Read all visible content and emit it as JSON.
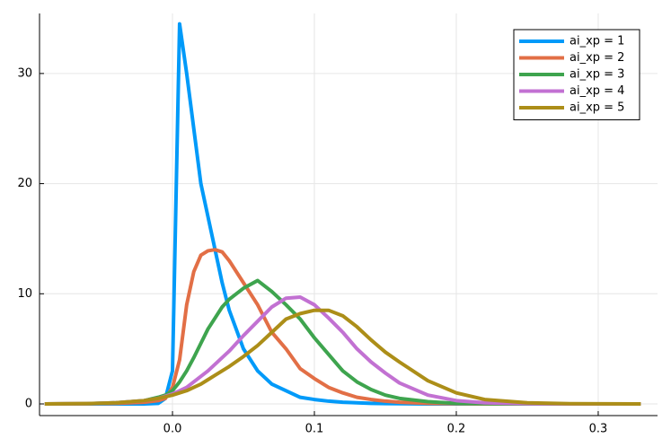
{
  "chart_data": {
    "type": "line",
    "x": [
      -0.09,
      -0.06,
      -0.04,
      -0.02,
      -0.01,
      -0.005,
      0,
      0.005,
      0.01,
      0.015,
      0.02,
      0.025,
      0.03,
      0.035,
      0.04,
      0.05,
      0.06,
      0.07,
      0.08,
      0.09,
      0.1,
      0.11,
      0.12,
      0.13,
      0.14,
      0.15,
      0.16,
      0.18,
      0.2,
      0.22,
      0.25,
      0.28,
      0.33
    ],
    "series": [
      {
        "name": "ai_xp = 1",
        "color": "#009af9",
        "values": [
          0,
          0,
          0,
          0,
          0.05,
          0.5,
          3,
          34.5,
          30,
          25,
          20,
          17,
          14,
          11,
          8.5,
          5,
          3,
          1.8,
          1.2,
          0.6,
          0.4,
          0.25,
          0.15,
          0.1,
          0.05,
          0.03,
          0.02,
          0,
          0,
          0,
          0,
          0,
          0
        ]
      },
      {
        "name": "ai_xp = 2",
        "color": "#e26f46",
        "values": [
          0,
          0.02,
          0.05,
          0.15,
          0.3,
          0.5,
          1.5,
          4,
          9,
          12,
          13.5,
          13.9,
          14,
          13.8,
          13,
          11,
          9,
          6.5,
          5,
          3.2,
          2.3,
          1.5,
          1,
          0.6,
          0.4,
          0.25,
          0.15,
          0.05,
          0.02,
          0,
          0,
          0,
          0
        ]
      },
      {
        "name": "ai_xp = 3",
        "color": "#3ea44e",
        "values": [
          0,
          0.02,
          0.1,
          0.3,
          0.6,
          0.8,
          1.2,
          2,
          3,
          4.2,
          5.5,
          6.8,
          7.8,
          8.8,
          9.5,
          10.5,
          11.2,
          10.2,
          9,
          7.7,
          6,
          4.5,
          3,
          2,
          1.3,
          0.8,
          0.5,
          0.2,
          0.05,
          0.02,
          0,
          0,
          0
        ]
      },
      {
        "name": "ai_xp = 4",
        "color": "#c271d2",
        "values": [
          0,
          0.02,
          0.1,
          0.3,
          0.5,
          0.7,
          0.9,
          1.2,
          1.5,
          2,
          2.5,
          3,
          3.6,
          4.2,
          4.8,
          6.2,
          7.5,
          8.8,
          9.6,
          9.7,
          9,
          7.8,
          6.5,
          5,
          3.8,
          2.8,
          1.9,
          0.8,
          0.3,
          0.1,
          0.02,
          0,
          0
        ]
      },
      {
        "name": "ai_xp = 5",
        "color": "#ac8e18",
        "values": [
          0,
          0.03,
          0.1,
          0.3,
          0.5,
          0.65,
          0.8,
          1,
          1.2,
          1.5,
          1.8,
          2.2,
          2.6,
          3,
          3.4,
          4.3,
          5.3,
          6.5,
          7.7,
          8.2,
          8.5,
          8.5,
          8,
          7,
          5.8,
          4.7,
          3.8,
          2.1,
          1,
          0.4,
          0.1,
          0.02,
          0
        ]
      }
    ],
    "xlim": [
      -0.0937,
      0.3418
    ],
    "ylim": [
      -1.06,
      35.45
    ],
    "xticks": [
      {
        "value": 0,
        "label": "0.0"
      },
      0.1,
      0.2,
      0.3
    ],
    "yticks": [
      0,
      10,
      20,
      30
    ],
    "grid": true,
    "legend": "top-right"
  }
}
